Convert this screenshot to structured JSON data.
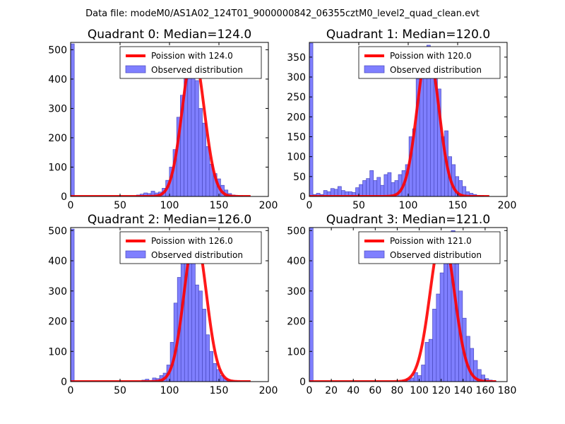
{
  "figure_title": "Data file: modeM0/AS1A02_124T01_9000000842_06355cztM0_level2_quad_clean.evt",
  "chart_data": [
    {
      "type": "bar",
      "panel": "top-left",
      "title": "Quadrant 0: Median=124.0",
      "legend_location": "top-right",
      "legend": [
        "Poission with 124.0",
        "Observed distribution"
      ],
      "xlim": [
        0,
        200
      ],
      "ylim": [
        0,
        525
      ],
      "xticks": [
        0,
        50,
        100,
        150,
        200
      ],
      "yticks": [
        0,
        100,
        200,
        300,
        400,
        500
      ],
      "xtick_labels": [
        "0",
        "50",
        "100",
        "150",
        "200"
      ],
      "ytick_labels": [
        "0",
        "100",
        "200",
        "300",
        "400",
        "500"
      ],
      "bins": {
        "edges": [
          0,
          3.7,
          7.4,
          11.1,
          14.8,
          18.5,
          22.2,
          25.9,
          29.6,
          33.3,
          37.0,
          40.7,
          44.4,
          48.1,
          51.8,
          55.5,
          59.2,
          62.9,
          66.6,
          70.3,
          74.0,
          77.7,
          81.4,
          85.1,
          88.8,
          92.5,
          96.2,
          99.9,
          103.6,
          107.3,
          111.0,
          114.7,
          118.4,
          122.1,
          125.8,
          129.5,
          133.2,
          136.9,
          140.6,
          144.3,
          148.0,
          151.7,
          155.4,
          159.1,
          162.8,
          166.5,
          170.2,
          173.9,
          177.6,
          181.3,
          185.0
        ],
        "counts": [
          520,
          0,
          0,
          0,
          0,
          0,
          0,
          0,
          0,
          0,
          0,
          0,
          0,
          0,
          0,
          0,
          0,
          0,
          5,
          8,
          12,
          10,
          18,
          12,
          15,
          28,
          55,
          100,
          160,
          270,
          345,
          420,
          500,
          460,
          395,
          300,
          250,
          170,
          110,
          78,
          60,
          38,
          22,
          10,
          5,
          3,
          2,
          1,
          1,
          0
        ]
      },
      "model": {
        "name": "Poission with 124.0",
        "mean": 124.0,
        "peak": 490,
        "x_range": [
          0,
          182
        ]
      }
    },
    {
      "type": "bar",
      "panel": "top-right",
      "title": "Quadrant 1: Median=120.0",
      "legend_location": "top-right",
      "legend": [
        "Poission with 120.0",
        "Observed distribution"
      ],
      "xlim": [
        0,
        200
      ],
      "ylim": [
        0,
        387
      ],
      "xticks": [
        0,
        50,
        100,
        150,
        200
      ],
      "yticks": [
        0,
        50,
        100,
        150,
        200,
        250,
        300,
        350
      ],
      "xtick_labels": [
        "0",
        "50",
        "100",
        "150",
        "200"
      ],
      "ytick_labels": [
        "0",
        "50",
        "100",
        "150",
        "200",
        "250",
        "300",
        "350"
      ],
      "bins": {
        "edges": [
          0,
          3.6,
          7.2,
          10.8,
          14.4,
          18.0,
          21.6,
          25.2,
          28.8,
          32.4,
          36.0,
          39.6,
          43.2,
          46.8,
          50.4,
          54.0,
          57.6,
          61.2,
          64.8,
          68.4,
          72.0,
          75.6,
          79.2,
          82.8,
          86.4,
          90.0,
          93.6,
          97.2,
          100.8,
          104.4,
          108.0,
          111.6,
          115.2,
          118.8,
          122.4,
          126.0,
          129.6,
          133.2,
          136.8,
          140.4,
          144.0,
          147.6,
          151.2,
          154.8,
          158.4,
          162.0,
          165.6,
          169.2,
          172.8,
          176.4,
          180.0
        ],
        "counts": [
          385,
          5,
          8,
          5,
          15,
          12,
          20,
          18,
          25,
          15,
          12,
          12,
          10,
          22,
          30,
          40,
          45,
          65,
          40,
          48,
          28,
          55,
          60,
          35,
          40,
          55,
          65,
          80,
          150,
          170,
          295,
          300,
          360,
          380,
          340,
          295,
          270,
          150,
          165,
          100,
          80,
          50,
          40,
          25,
          12,
          8,
          5,
          3,
          2,
          0
        ]
      },
      "model": {
        "name": "Poission with 120.0",
        "mean": 120.0,
        "peak": 368,
        "x_range": [
          0,
          182
        ]
      }
    },
    {
      "type": "bar",
      "panel": "bottom-left",
      "title": "Quadrant 2: Median=126.0",
      "legend_location": "top-right",
      "legend": [
        "Poission with 126.0",
        "Observed distribution"
      ],
      "xlim": [
        0,
        200
      ],
      "ylim": [
        0,
        510
      ],
      "xticks": [
        0,
        50,
        100,
        150,
        200
      ],
      "yticks": [
        0,
        100,
        200,
        300,
        400,
        500
      ],
      "xtick_labels": [
        "0",
        "50",
        "100",
        "150",
        "200"
      ],
      "ytick_labels": [
        "0",
        "100",
        "200",
        "300",
        "400",
        "500"
      ],
      "bins": {
        "edges": [
          0,
          3.6,
          7.2,
          10.8,
          14.4,
          18.0,
          21.6,
          25.2,
          28.8,
          32.4,
          36.0,
          39.6,
          43.2,
          46.8,
          50.4,
          54.0,
          57.6,
          61.2,
          64.8,
          68.4,
          72.0,
          75.6,
          79.2,
          82.8,
          86.4,
          90.0,
          93.6,
          97.2,
          100.8,
          104.4,
          108.0,
          111.6,
          115.2,
          118.8,
          122.4,
          126.0,
          129.6,
          133.2,
          136.8,
          140.4,
          144.0,
          147.6,
          151.2,
          154.8,
          158.4,
          162.0,
          165.6,
          169.2,
          172.8,
          176.4,
          180.0
        ],
        "counts": [
          505,
          0,
          0,
          0,
          0,
          0,
          0,
          0,
          0,
          0,
          0,
          0,
          0,
          0,
          0,
          0,
          0,
          0,
          0,
          0,
          5,
          8,
          4,
          12,
          10,
          20,
          28,
          55,
          130,
          260,
          345,
          440,
          490,
          410,
          450,
          320,
          300,
          240,
          155,
          100,
          60,
          40,
          20,
          10,
          5,
          3,
          2,
          1,
          0,
          0
        ]
      },
      "model": {
        "name": "Poission with 126.0",
        "mean": 126.0,
        "peak": 485,
        "x_range": [
          0,
          182
        ]
      }
    },
    {
      "type": "bar",
      "panel": "bottom-right",
      "title": "Quadrant 3: Median=121.0",
      "legend_location": "top-right",
      "legend": [
        "Poission with 121.0",
        "Observed distribution"
      ],
      "xlim": [
        0,
        180
      ],
      "ylim": [
        0,
        510
      ],
      "xticks": [
        0,
        20,
        40,
        60,
        80,
        100,
        120,
        140,
        160,
        180
      ],
      "yticks": [
        0,
        100,
        200,
        300,
        400,
        500
      ],
      "xtick_labels": [
        "0",
        "20",
        "40",
        "60",
        "80",
        "100",
        "120",
        "140",
        "160",
        "180"
      ],
      "ytick_labels": [
        "0",
        "100",
        "200",
        "300",
        "400",
        "500"
      ],
      "bins": {
        "edges": [
          0,
          3.4,
          6.8,
          10.2,
          13.6,
          17.0,
          20.4,
          23.8,
          27.2,
          30.6,
          34.0,
          37.4,
          40.8,
          44.2,
          47.6,
          51.0,
          54.4,
          57.8,
          61.2,
          64.6,
          68.0,
          71.4,
          74.8,
          78.2,
          81.6,
          85.0,
          88.4,
          91.8,
          95.2,
          98.6,
          102.0,
          105.4,
          108.8,
          112.2,
          115.6,
          119.0,
          122.4,
          125.8,
          129.2,
          132.6,
          136.0,
          139.4,
          142.8,
          146.2,
          149.6,
          153.0,
          156.4,
          159.8,
          163.2,
          166.6,
          170.0
        ],
        "counts": [
          510,
          0,
          0,
          0,
          0,
          0,
          0,
          0,
          0,
          0,
          0,
          0,
          0,
          0,
          0,
          0,
          0,
          0,
          0,
          0,
          0,
          0,
          0,
          0,
          0,
          3,
          8,
          12,
          30,
          20,
          55,
          130,
          140,
          240,
          290,
          360,
          420,
          470,
          500,
          390,
          300,
          210,
          150,
          110,
          70,
          40,
          22,
          10,
          5,
          2
        ]
      },
      "model": {
        "name": "Poission with 121.0",
        "mean": 121.0,
        "peak": 490,
        "x_range": [
          0,
          170
        ]
      }
    }
  ],
  "colors": {
    "bars_fill": "#7f7fff",
    "bars_edge": "#4a4abf",
    "model_line": "#ff0000"
  }
}
